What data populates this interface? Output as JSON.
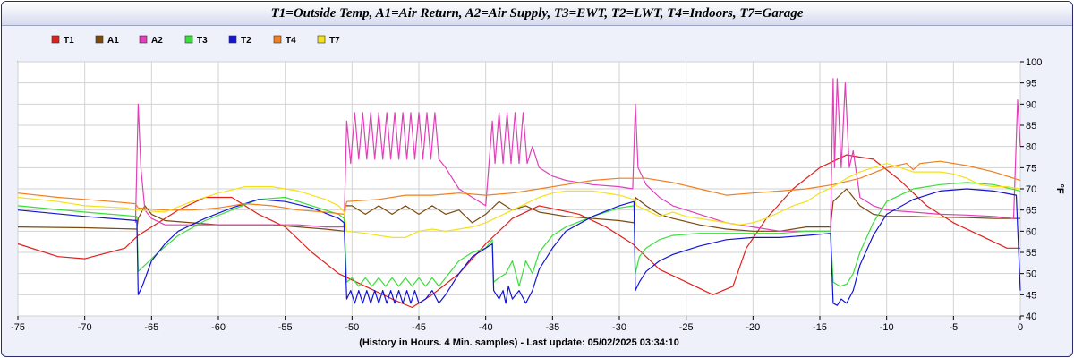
{
  "chart_data": {
    "type": "line",
    "title": "T1=Outside Temp, A1=Air Return, A2=Air Supply, T3=EWT, T2=LWT, T4=Indoors, T7=Garage",
    "xlabel": "(History in Hours. 4 Min. samples) - Last update: 05/02/2025 03:34:10",
    "ylabel": "°F",
    "xlim": [
      -75,
      0
    ],
    "ylim": [
      40,
      100
    ],
    "x_ticks": [
      -75,
      -70,
      -65,
      -60,
      -55,
      -50,
      -45,
      -40,
      -35,
      -30,
      -25,
      -20,
      -15,
      -10,
      -5,
      0
    ],
    "y_ticks": [
      40,
      45,
      50,
      55,
      60,
      65,
      70,
      75,
      80,
      85,
      90,
      95,
      100
    ],
    "grid": true,
    "legend_position": "top-left",
    "series": [
      {
        "name": "T1",
        "color": "#e0201c",
        "x": [
          -75,
          -72,
          -70,
          -67,
          -66,
          -64.5,
          -63,
          -61,
          -59,
          -57,
          -55,
          -53,
          -51,
          -49,
          -47,
          -45.5,
          -44,
          -42,
          -40,
          -38,
          -36,
          -33,
          -31,
          -29,
          -27,
          -25,
          -23,
          -21.5,
          -20.5,
          -19,
          -17,
          -15,
          -13,
          -11,
          -9,
          -7,
          -5,
          -3,
          -1,
          0
        ],
        "y": [
          57,
          54,
          53.5,
          56,
          59,
          62,
          65,
          68,
          68,
          64,
          61,
          55,
          50,
          47,
          44,
          42,
          45,
          50,
          57,
          63,
          66,
          64,
          61,
          57,
          51,
          48,
          45,
          47,
          56,
          63,
          70,
          75,
          78,
          77,
          72,
          66,
          62,
          59,
          56,
          56
        ]
      },
      {
        "name": "A1",
        "color": "#7a4a10",
        "x": [
          -75,
          -70,
          -66.1,
          -66,
          -65.5,
          -65,
          -64,
          -62,
          -60,
          -58,
          -56,
          -54,
          -52,
          -50.6,
          -50.5,
          -50,
          -49,
          -48,
          -47,
          -46,
          -45,
          -44,
          -43,
          -42,
          -41,
          -40,
          -39,
          -38,
          -37,
          -36,
          -34,
          -32,
          -30,
          -28.9,
          -28.8,
          -28,
          -27,
          -26,
          -24,
          -22,
          -20,
          -18,
          -16,
          -14.2,
          -14,
          -13,
          -12,
          -11,
          -10,
          -8,
          -6,
          -4,
          -2,
          0
        ],
        "y": [
          61,
          60.8,
          60.5,
          63,
          66,
          64,
          62.5,
          62,
          61.5,
          61.5,
          61.5,
          61,
          60.5,
          60,
          66,
          66,
          64,
          66,
          64,
          66,
          64,
          66,
          64,
          65,
          62,
          64,
          67,
          65,
          66,
          64.5,
          63.5,
          63,
          62.5,
          62,
          68,
          66,
          64,
          63,
          61.5,
          60.5,
          60,
          60,
          61,
          61,
          67,
          70,
          66,
          64,
          63.5,
          63.5,
          63.3,
          63.2,
          63,
          63
        ]
      },
      {
        "name": "A2",
        "color": "#e040b8",
        "x": [
          -66.2,
          -66,
          -65.8,
          -65.5,
          -65,
          -64,
          -62,
          -60,
          -58,
          -56,
          -54,
          -52,
          -50.6,
          -50.4,
          -50.1,
          -49.8,
          -49.5,
          -49.2,
          -48.9,
          -48.6,
          -48.3,
          -48,
          -47.7,
          -47.4,
          -47.1,
          -46.8,
          -46.5,
          -46.2,
          -45.9,
          -45.6,
          -45.3,
          -45,
          -44.7,
          -44.4,
          -44.1,
          -43.8,
          -43.5,
          -43,
          -42,
          -41,
          -40,
          -39.5,
          -39.3,
          -39,
          -38.7,
          -38.4,
          -38.1,
          -37.8,
          -37.5,
          -37.2,
          -36.9,
          -36.5,
          -36,
          -35,
          -34,
          -32,
          -30,
          -29,
          -28.8,
          -28.6,
          -28.3,
          -28,
          -27,
          -26,
          -24,
          -22,
          -20,
          -18,
          -16,
          -14.2,
          -14,
          -13.9,
          -13.7,
          -13.4,
          -13.1,
          -12.8,
          -12.5,
          -12,
          -11,
          -10,
          -8,
          -6,
          -4,
          -2,
          -0.5,
          -0.2,
          0
        ],
        "y": [
          62,
          90,
          75,
          65,
          63,
          61.5,
          61.5,
          61.5,
          61.5,
          61.5,
          61.5,
          61,
          61,
          86,
          76,
          88,
          77,
          88,
          77,
          88,
          77,
          88,
          77,
          88,
          77,
          88,
          77,
          88,
          77,
          88,
          77,
          88,
          77,
          88,
          77,
          88,
          77,
          75,
          70,
          68,
          66,
          86,
          76,
          88,
          76,
          88,
          76,
          88,
          76,
          88,
          76,
          80,
          75,
          73,
          72,
          71,
          70.5,
          70,
          90,
          75,
          73,
          71,
          68,
          66,
          64,
          62,
          61,
          60,
          60,
          60,
          96,
          75,
          96,
          75,
          95,
          75,
          79,
          68,
          66,
          65,
          64.5,
          64,
          63.8,
          63.5,
          63,
          91,
          80
        ]
      },
      {
        "name": "T3",
        "color": "#3ade3a",
        "x": [
          -75,
          -70,
          -66.1,
          -66,
          -65.5,
          -64.5,
          -63,
          -61,
          -59,
          -57,
          -55,
          -53,
          -51,
          -50.6,
          -50.4,
          -50,
          -49.5,
          -49,
          -48.5,
          -48,
          -47.5,
          -47,
          -46.5,
          -46,
          -45.5,
          -45,
          -44.5,
          -44,
          -43.5,
          -43,
          -42,
          -41,
          -40,
          -39.5,
          -39.4,
          -39,
          -38.5,
          -38,
          -37.5,
          -37,
          -36.5,
          -36,
          -35,
          -34,
          -32,
          -30,
          -28.9,
          -28.8,
          -28.5,
          -28,
          -27,
          -26,
          -24,
          -22,
          -20,
          -18,
          -16,
          -14.2,
          -14,
          -13.5,
          -13,
          -12.5,
          -12,
          -11,
          -10,
          -8,
          -6,
          -4,
          -2,
          0
        ],
        "y": [
          66,
          64.5,
          63.5,
          50.5,
          52,
          55,
          59,
          62.5,
          65,
          67.5,
          68,
          66,
          64,
          63,
          48,
          49,
          47,
          49,
          47,
          49,
          47,
          49,
          47,
          49,
          47,
          49,
          47,
          49,
          47,
          49,
          53,
          55,
          56,
          58,
          48,
          49,
          50,
          53,
          47,
          53,
          50,
          55,
          59,
          61,
          63.5,
          65.5,
          66,
          50,
          54,
          56,
          58,
          59,
          59.5,
          59.5,
          59.5,
          59.5,
          60,
          60,
          48,
          47,
          47.5,
          50,
          55,
          62,
          67,
          70,
          71,
          71.5,
          71,
          69.5
        ]
      },
      {
        "name": "T2",
        "color": "#1414d8",
        "x": [
          -75,
          -70,
          -66.1,
          -66,
          -65.7,
          -65,
          -64,
          -63,
          -61,
          -59,
          -57,
          -55,
          -53,
          -51,
          -50.6,
          -50.4,
          -50.1,
          -49.8,
          -49.5,
          -49.2,
          -48.9,
          -48.6,
          -48.3,
          -48,
          -47.7,
          -47.4,
          -47.1,
          -46.8,
          -46.5,
          -46.2,
          -45.9,
          -45.6,
          -45.3,
          -45,
          -44.5,
          -44,
          -43.5,
          -43,
          -42,
          -41,
          -40,
          -39.5,
          -39.4,
          -39,
          -38.7,
          -38.5,
          -38.3,
          -38,
          -37.5,
          -37,
          -36.5,
          -36,
          -35,
          -34,
          -32,
          -30,
          -28.9,
          -28.8,
          -28.5,
          -28,
          -27,
          -26,
          -24,
          -22,
          -20,
          -18,
          -16,
          -14.2,
          -14,
          -13.7,
          -13.4,
          -13,
          -12.5,
          -12,
          -11,
          -10,
          -8,
          -6,
          -4,
          -2,
          -0.3,
          0
        ],
        "y": [
          65,
          63.5,
          62.5,
          45,
          47,
          53,
          57,
          60,
          63,
          65.5,
          67.5,
          67,
          65.5,
          63,
          62,
          44,
          46,
          43,
          46,
          43,
          46,
          43,
          46,
          43,
          46,
          43,
          46,
          43,
          46,
          43,
          46,
          43,
          46,
          43,
          44,
          46,
          43,
          45,
          50,
          54,
          56,
          57,
          46,
          44,
          46,
          43,
          47,
          44,
          46,
          43,
          46,
          51,
          56,
          60,
          63.5,
          66,
          67,
          46,
          48,
          50.5,
          53,
          54.5,
          56.5,
          58,
          58.5,
          58.5,
          59,
          59.5,
          43,
          42.5,
          44,
          43,
          46,
          52,
          59,
          64,
          67.5,
          69.5,
          70,
          69.5,
          68.5,
          46
        ]
      },
      {
        "name": "T4",
        "color": "#f08020",
        "x": [
          -75,
          -72,
          -70,
          -68,
          -66.2,
          -66,
          -64,
          -62,
          -60,
          -58,
          -56,
          -54,
          -52,
          -50.6,
          -50.4,
          -48,
          -46,
          -44,
          -42,
          -40,
          -38,
          -36,
          -34,
          -32,
          -30,
          -28,
          -26,
          -24,
          -22,
          -20,
          -18,
          -16,
          -14,
          -12,
          -10,
          -8.5,
          -8,
          -7.5,
          -6,
          -4,
          -2,
          0
        ],
        "y": [
          69,
          68,
          67.5,
          67,
          66.5,
          65.5,
          65,
          65,
          65.5,
          66.5,
          66,
          65,
          64.5,
          64,
          67,
          67.5,
          68.5,
          68.5,
          69,
          68.5,
          69,
          70,
          71,
          72,
          72.5,
          72.5,
          71.5,
          70,
          68.5,
          69,
          69.5,
          70,
          71,
          72.5,
          75,
          76,
          74.5,
          76,
          76.5,
          75.5,
          74,
          72
        ]
      },
      {
        "name": "T7",
        "color": "#f2e218",
        "x": [
          -75,
          -72,
          -70,
          -67,
          -66,
          -64,
          -62,
          -60,
          -58,
          -56,
          -54,
          -52,
          -51,
          -50.6,
          -50.4,
          -49,
          -48,
          -47,
          -46,
          -45,
          -44,
          -43,
          -42,
          -41,
          -40,
          -39,
          -38,
          -37,
          -36,
          -35,
          -34,
          -33,
          -32,
          -30,
          -28.9,
          -28.7,
          -28,
          -27,
          -26,
          -25,
          -24,
          -23,
          -22,
          -21,
          -20,
          -19,
          -18,
          -17,
          -16,
          -15,
          -14,
          -13,
          -12,
          -11,
          -10,
          -9,
          -8,
          -7,
          -6,
          -5,
          -4,
          -3,
          -2,
          -1,
          0
        ],
        "y": [
          68,
          67,
          66,
          65.5,
          65,
          64.5,
          67,
          69,
          70.5,
          70.5,
          69.5,
          67.5,
          66,
          64.5,
          60,
          59.5,
          59,
          58.5,
          58.5,
          60,
          60.5,
          60,
          60.5,
          61,
          62,
          63.5,
          65,
          66.5,
          68,
          69,
          69.5,
          69.5,
          69.5,
          68.5,
          67.5,
          66,
          65,
          63.5,
          64.5,
          63.5,
          63,
          62.5,
          62,
          61.5,
          62,
          63,
          64.5,
          66,
          67,
          69,
          70.5,
          72.5,
          74,
          75,
          76,
          75,
          74,
          74,
          74,
          73.5,
          72.5,
          71,
          70.5,
          70.5,
          70
        ]
      }
    ]
  }
}
